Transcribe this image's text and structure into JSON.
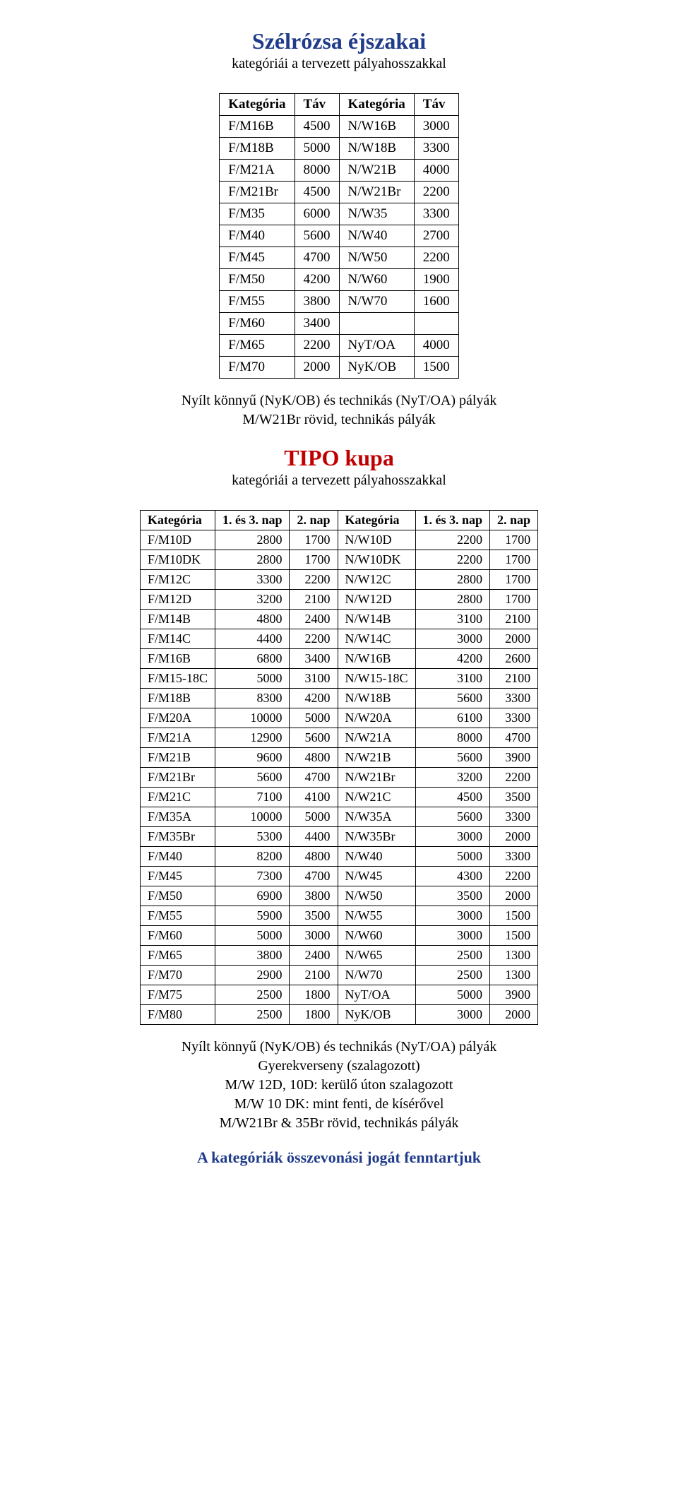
{
  "section1": {
    "title": "Szélrózsa éjszakai",
    "subtitle": "kategóriái a tervezett pályahosszakkal",
    "columns": [
      "Kategória",
      "Táv",
      "Kategória",
      "Táv"
    ],
    "rows": [
      [
        "F/M16B",
        "4500",
        "N/W16B",
        "3000"
      ],
      [
        "F/M18B",
        "5000",
        "N/W18B",
        "3300"
      ],
      [
        "F/M21A",
        "8000",
        "N/W21B",
        "4000"
      ],
      [
        "F/M21Br",
        "4500",
        "N/W21Br",
        "2200"
      ],
      [
        "F/M35",
        "6000",
        "N/W35",
        "3300"
      ],
      [
        "F/M40",
        "5600",
        "N/W40",
        "2700"
      ],
      [
        "F/M45",
        "4700",
        "N/W50",
        "2200"
      ],
      [
        "F/M50",
        "4200",
        "N/W60",
        "1900"
      ],
      [
        "F/M55",
        "3800",
        "N/W70",
        "1600"
      ],
      [
        "F/M60",
        "3400",
        "",
        ""
      ],
      [
        "F/M65",
        "2200",
        "NyT/OA",
        "4000"
      ],
      [
        "F/M70",
        "2000",
        "NyK/OB",
        "1500"
      ]
    ],
    "notes": [
      "Nyílt könnyű (NyK/OB) és technikás (NyT/OA) pályák",
      "M/W21Br rövid, technikás pályák"
    ]
  },
  "section2": {
    "title": "TIPO kupa",
    "subtitle": "kategóriái a tervezett pályahosszakkal",
    "columns": [
      "Kategória",
      "1. és 3. nap",
      "2. nap",
      "Kategória",
      "1. és 3. nap",
      "2. nap"
    ],
    "rows": [
      [
        "F/M10D",
        "2800",
        "1700",
        "N/W10D",
        "2200",
        "1700"
      ],
      [
        "F/M10DK",
        "2800",
        "1700",
        "N/W10DK",
        "2200",
        "1700"
      ],
      [
        "F/M12C",
        "3300",
        "2200",
        "N/W12C",
        "2800",
        "1700"
      ],
      [
        "F/M12D",
        "3200",
        "2100",
        "N/W12D",
        "2800",
        "1700"
      ],
      [
        "F/M14B",
        "4800",
        "2400",
        "N/W14B",
        "3100",
        "2100"
      ],
      [
        "F/M14C",
        "4400",
        "2200",
        "N/W14C",
        "3000",
        "2000"
      ],
      [
        "F/M16B",
        "6800",
        "3400",
        "N/W16B",
        "4200",
        "2600"
      ],
      [
        "F/M15-18C",
        "5000",
        "3100",
        "N/W15-18C",
        "3100",
        "2100"
      ],
      [
        "F/M18B",
        "8300",
        "4200",
        "N/W18B",
        "5600",
        "3300"
      ],
      [
        "F/M20A",
        "10000",
        "5000",
        "N/W20A",
        "6100",
        "3300"
      ],
      [
        "F/M21A",
        "12900",
        "5600",
        "N/W21A",
        "8000",
        "4700"
      ],
      [
        "F/M21B",
        "9600",
        "4800",
        "N/W21B",
        "5600",
        "3900"
      ],
      [
        "F/M21Br",
        "5600",
        "4700",
        "N/W21Br",
        "3200",
        "2200"
      ],
      [
        "F/M21C",
        "7100",
        "4100",
        "N/W21C",
        "4500",
        "3500"
      ],
      [
        "F/M35A",
        "10000",
        "5000",
        "N/W35A",
        "5600",
        "3300"
      ],
      [
        "F/M35Br",
        "5300",
        "4400",
        "N/W35Br",
        "3000",
        "2000"
      ],
      [
        "F/M40",
        "8200",
        "4800",
        "N/W40",
        "5000",
        "3300"
      ],
      [
        "F/M45",
        "7300",
        "4700",
        "N/W45",
        "4300",
        "2200"
      ],
      [
        "F/M50",
        "6900",
        "3800",
        "N/W50",
        "3500",
        "2000"
      ],
      [
        "F/M55",
        "5900",
        "3500",
        "N/W55",
        "3000",
        "1500"
      ],
      [
        "F/M60",
        "5000",
        "3000",
        "N/W60",
        "3000",
        "1500"
      ],
      [
        "F/M65",
        "3800",
        "2400",
        "N/W65",
        "2500",
        "1300"
      ],
      [
        "F/M70",
        "2900",
        "2100",
        "N/W70",
        "2500",
        "1300"
      ],
      [
        "F/M75",
        "2500",
        "1800",
        "NyT/OA",
        "5000",
        "3900"
      ],
      [
        "F/M80",
        "2500",
        "1800",
        "NyK/OB",
        "3000",
        "2000"
      ]
    ],
    "notes": [
      "Nyílt könnyű (NyK/OB) és technikás (NyT/OA) pályák",
      "Gyerekverseny (szalagozott)",
      "M/W 12D, 10D: kerülő úton szalagozott",
      "M/W 10 DK: mint fenti, de kísérővel",
      "M/W21Br & 35Br rövid, technikás pályák"
    ]
  },
  "footer": "A kategóriák összevonási jogát fenntartjuk"
}
